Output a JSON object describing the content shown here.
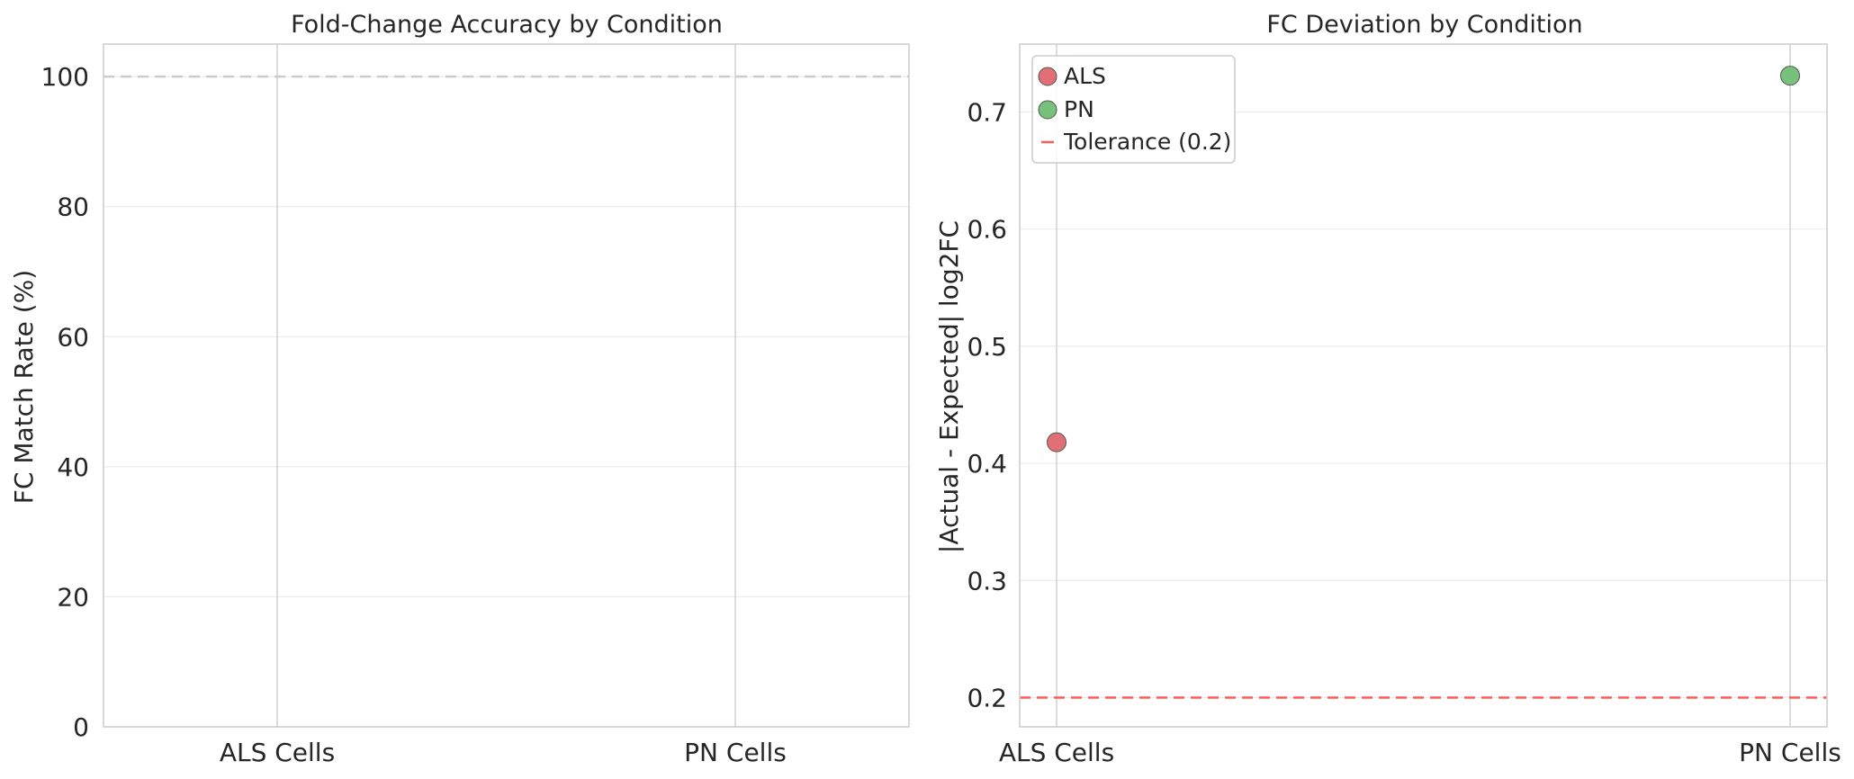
{
  "chart_data": [
    {
      "type": "bar",
      "title": "Fold-Change Accuracy by Condition",
      "xlabel": "",
      "ylabel": "FC Match Rate (%)",
      "categories": [
        "ALS Cells",
        "PN Cells"
      ],
      "values": [
        0,
        0
      ],
      "ylim": [
        0,
        105
      ],
      "yticks": [
        "0",
        "20",
        "40",
        "60",
        "80",
        "100"
      ],
      "reference_line": {
        "y": 100,
        "style": "dashed",
        "color": "#cccccc"
      },
      "grid": true
    },
    {
      "type": "scatter",
      "title": "FC Deviation by Condition",
      "xlabel": "",
      "ylabel": "|Actual - Expected| log2FC",
      "categories": [
        "ALS Cells",
        "PN Cells"
      ],
      "series": [
        {
          "name": "ALS",
          "x": "ALS Cells",
          "y": 0.418,
          "color": "#e07075"
        },
        {
          "name": "PN",
          "x": "PN Cells",
          "y": 0.731,
          "color": "#77c27a"
        }
      ],
      "ylim": [
        0.175,
        0.758
      ],
      "yticks": [
        "0.2",
        "0.3",
        "0.4",
        "0.5",
        "0.6",
        "0.7"
      ],
      "tolerance": {
        "label": "Tolerance (0.2)",
        "y": 0.2,
        "color": "#ff5a5a",
        "style": "dashed"
      },
      "legend_position": "top-left",
      "grid": true
    }
  ]
}
